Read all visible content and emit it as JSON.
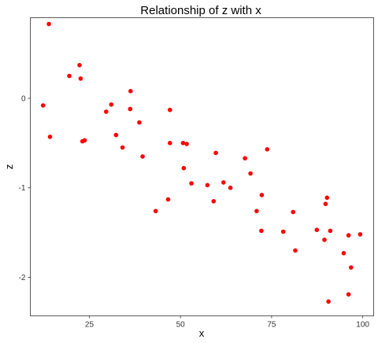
{
  "chart_data": {
    "type": "scatter",
    "title": "Relationship of z with x",
    "xlabel": "x",
    "ylabel": "z",
    "xlim": [
      8.8,
      103
    ],
    "ylim": [
      -2.43,
      0.9
    ],
    "x_ticks": [
      25,
      50,
      75,
      100
    ],
    "y_ticks": [
      0,
      -1,
      -2
    ],
    "x_tick_labels": [
      "25",
      "50",
      "75",
      "100"
    ],
    "y_tick_labels": [
      "0",
      "-1",
      "-2"
    ],
    "grid": false,
    "point_color": "#ff0000",
    "points": [
      {
        "x": 13.9,
        "y": 0.83
      },
      {
        "x": 12.3,
        "y": -0.08
      },
      {
        "x": 14.2,
        "y": -0.43
      },
      {
        "x": 19.5,
        "y": 0.25
      },
      {
        "x": 22.3,
        "y": 0.37
      },
      {
        "x": 22.6,
        "y": 0.22
      },
      {
        "x": 23.1,
        "y": -0.48
      },
      {
        "x": 23.7,
        "y": -0.47
      },
      {
        "x": 29.6,
        "y": -0.15
      },
      {
        "x": 31.0,
        "y": -0.07
      },
      {
        "x": 32.3,
        "y": -0.41
      },
      {
        "x": 34.1,
        "y": -0.55
      },
      {
        "x": 36.3,
        "y": 0.08
      },
      {
        "x": 36.2,
        "y": -0.12
      },
      {
        "x": 38.7,
        "y": -0.27
      },
      {
        "x": 39.6,
        "y": -0.65
      },
      {
        "x": 43.2,
        "y": -1.26
      },
      {
        "x": 46.6,
        "y": -1.13
      },
      {
        "x": 47.1,
        "y": -0.13
      },
      {
        "x": 47.1,
        "y": -0.5
      },
      {
        "x": 50.7,
        "y": -0.5
      },
      {
        "x": 51.7,
        "y": -0.51
      },
      {
        "x": 50.9,
        "y": -0.78
      },
      {
        "x": 53.0,
        "y": -0.95
      },
      {
        "x": 57.4,
        "y": -0.97
      },
      {
        "x": 59.1,
        "y": -1.15
      },
      {
        "x": 59.7,
        "y": -0.61
      },
      {
        "x": 61.8,
        "y": -0.94
      },
      {
        "x": 63.7,
        "y": -1.0
      },
      {
        "x": 67.7,
        "y": -0.67
      },
      {
        "x": 69.2,
        "y": -0.84
      },
      {
        "x": 70.9,
        "y": -1.26
      },
      {
        "x": 72.2,
        "y": -1.48
      },
      {
        "x": 72.3,
        "y": -1.08
      },
      {
        "x": 73.8,
        "y": -0.57
      },
      {
        "x": 78.2,
        "y": -1.49
      },
      {
        "x": 80.9,
        "y": -1.27
      },
      {
        "x": 81.5,
        "y": -1.7
      },
      {
        "x": 87.4,
        "y": -1.47
      },
      {
        "x": 89.5,
        "y": -1.58
      },
      {
        "x": 89.8,
        "y": -1.18
      },
      {
        "x": 90.2,
        "y": -1.11
      },
      {
        "x": 90.6,
        "y": -2.27
      },
      {
        "x": 91.1,
        "y": -1.48
      },
      {
        "x": 94.8,
        "y": -1.73
      },
      {
        "x": 96.1,
        "y": -1.53
      },
      {
        "x": 96.1,
        "y": -2.19
      },
      {
        "x": 96.8,
        "y": -1.89
      },
      {
        "x": 99.3,
        "y": -1.52
      }
    ]
  }
}
